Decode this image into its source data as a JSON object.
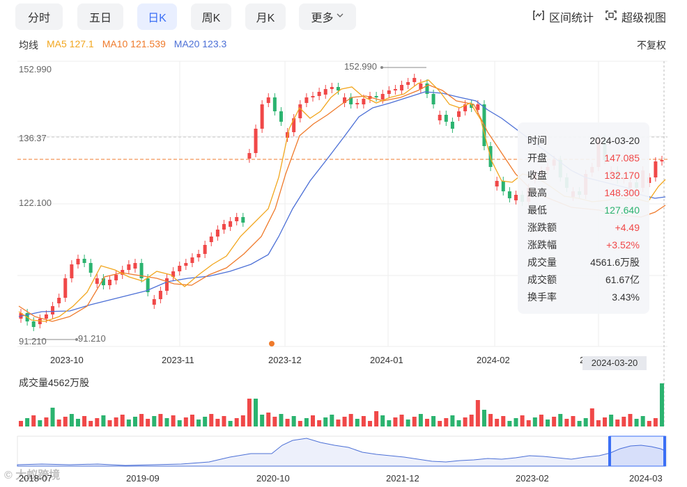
{
  "tabs": [
    {
      "label": "分时",
      "active": false
    },
    {
      "label": "五日",
      "active": false
    },
    {
      "label": "日K",
      "active": true
    },
    {
      "label": "周K",
      "active": false
    },
    {
      "label": "月K",
      "active": false
    },
    {
      "label": "更多",
      "active": false
    }
  ],
  "tools": {
    "range_stats": "区间统计",
    "super_view": "超级视图"
  },
  "ma": {
    "label": "均线",
    "ma5": "MA5 127.1",
    "ma10": "MA10 121.539",
    "ma20": "MA20 123.3"
  },
  "adjust": "不复权",
  "price_axis": {
    "high": "152.990",
    "mid": "136.37",
    "low": "122.100",
    "min": "91.210"
  },
  "annotations": {
    "max_marker": "152.990",
    "min_marker": "91.210"
  },
  "x_axis": [
    "2023-10",
    "2023-11",
    "2023-12",
    "2024-01",
    "2024-02",
    "2"
  ],
  "cursor_date": "2024-03-20",
  "tooltip": [
    {
      "k": "时间",
      "v": "2024-03-20",
      "c": "n"
    },
    {
      "k": "开盘",
      "v": "147.085",
      "c": "r"
    },
    {
      "k": "收盘",
      "v": "132.170",
      "c": "r"
    },
    {
      "k": "最高",
      "v": "148.300",
      "c": "r"
    },
    {
      "k": "最低",
      "v": "127.640",
      "c": "g"
    },
    {
      "k": "涨跌额",
      "v": "+4.49",
      "c": "r"
    },
    {
      "k": "涨跌幅",
      "v": "+3.52%",
      "c": "r"
    },
    {
      "k": "成交量",
      "v": "4561.6万股",
      "c": "n"
    },
    {
      "k": "成交额",
      "v": "61.67亿",
      "c": "n"
    },
    {
      "k": "换手率",
      "v": "3.43%",
      "c": "n"
    }
  ],
  "volume_label": "成交量4562万股",
  "overview_axis": [
    "2018-07",
    "2019-09",
    "2020-10",
    "2021-12",
    "2023-02",
    "2024-03"
  ],
  "watermark": "© 大蚁跨境",
  "colors": {
    "up": "#f04848",
    "down": "#2bb36f",
    "ma5": "#f2a61d",
    "ma10": "#ef7a2b",
    "ma20": "#4b6fd6",
    "accent": "#3b6ff5"
  }
}
